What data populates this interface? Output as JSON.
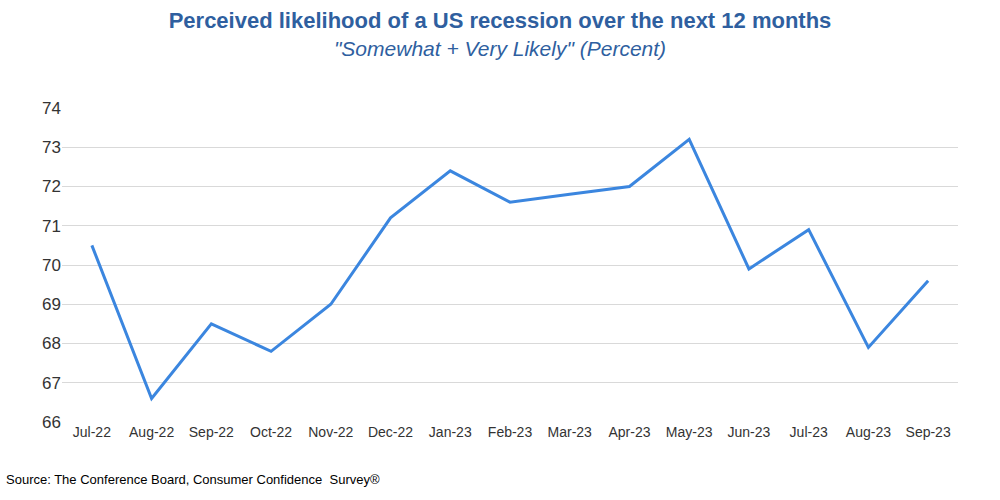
{
  "chart_data": {
    "type": "line",
    "title": "Perceived likelihood of a US recession over the next 12 months",
    "subtitle": "\"Somewhat + Very Likely\" (Percent)",
    "annotations": [
      "Source: The Conference Board, Consumer Confidence  Survey®"
    ],
    "categories": [
      "Jul-22",
      "Aug-22",
      "Sep-22",
      "Oct-22",
      "Nov-22",
      "Dec-22",
      "Jan-23",
      "Feb-23",
      "Mar-23",
      "Apr-23",
      "May-23",
      "Jun-23",
      "Jul-23",
      "Aug-23",
      "Sep-23"
    ],
    "values": [
      70.5,
      66.6,
      68.5,
      67.8,
      69.0,
      71.2,
      72.4,
      71.6,
      71.8,
      72.0,
      73.2,
      69.9,
      70.9,
      67.9,
      69.6
    ],
    "color": "#3b86df",
    "ylim": [
      66,
      74
    ],
    "yticks": [
      66,
      67,
      68,
      69,
      70,
      71,
      72,
      73,
      74
    ],
    "grid": true
  }
}
